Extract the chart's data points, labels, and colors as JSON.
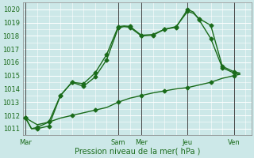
{
  "xlabel": "Pression niveau de la mer( hPa )",
  "background_color": "#cce8e8",
  "grid_color": "#ffffff",
  "line_color": "#1a6b1a",
  "ylim": [
    1010.5,
    1020.5
  ],
  "yticks": [
    1011,
    1012,
    1013,
    1014,
    1015,
    1016,
    1017,
    1018,
    1019,
    1020
  ],
  "day_labels": [
    "Mar",
    "Sam",
    "Mer",
    "Jeu",
    "Ven"
  ],
  "day_tick_positions": [
    0,
    8,
    10,
    14,
    18
  ],
  "vline_positions": [
    0,
    8,
    10,
    14,
    18
  ],
  "xlim": [
    -0.2,
    19.5
  ],
  "line1_x": [
    0,
    0.5,
    1,
    2,
    3,
    4,
    5,
    6,
    7,
    8,
    8.5,
    9,
    10,
    11,
    12,
    13,
    14,
    14.5,
    15,
    16,
    17,
    18,
    18.5
  ],
  "line1_y": [
    1011.8,
    1011.0,
    1011.0,
    1011.2,
    1013.5,
    1014.5,
    1014.2,
    1014.9,
    1016.2,
    1018.6,
    1018.7,
    1018.65,
    1018.0,
    1018.05,
    1018.5,
    1018.65,
    1020.0,
    1019.8,
    1019.2,
    1017.8,
    1015.6,
    1015.2,
    1015.1
  ],
  "line2_x": [
    0,
    0.5,
    1,
    2,
    3,
    4,
    5,
    6,
    7,
    8,
    8.5,
    9,
    10,
    11,
    12,
    13,
    14,
    14.5,
    15,
    16,
    17,
    18,
    18.5
  ],
  "line2_y": [
    1011.8,
    1011.0,
    1011.1,
    1011.5,
    1013.5,
    1014.5,
    1014.4,
    1015.2,
    1016.6,
    1018.7,
    1018.75,
    1018.72,
    1018.05,
    1018.1,
    1018.5,
    1018.7,
    1019.85,
    1019.7,
    1019.3,
    1018.8,
    1015.7,
    1015.3,
    1015.2
  ],
  "line3_x": [
    0,
    1,
    2,
    3,
    4,
    5,
    6,
    7,
    8,
    9,
    10,
    11,
    12,
    13,
    14,
    15,
    16,
    17,
    18,
    18.5
  ],
  "line3_y": [
    1011.8,
    1011.3,
    1011.5,
    1011.8,
    1012.0,
    1012.2,
    1012.4,
    1012.6,
    1013.0,
    1013.3,
    1013.5,
    1013.7,
    1013.85,
    1014.0,
    1014.1,
    1014.3,
    1014.5,
    1014.8,
    1015.0,
    1015.1
  ],
  "line1_markers_x": [
    0,
    1,
    2,
    3,
    4,
    5,
    6,
    7,
    8,
    9,
    10,
    11,
    12,
    13,
    14,
    15,
    16,
    17,
    18
  ],
  "line1_markers_y": [
    1011.8,
    1011.0,
    1011.2,
    1013.5,
    1014.5,
    1014.2,
    1014.9,
    1016.2,
    1018.6,
    1018.65,
    1018.0,
    1018.05,
    1018.5,
    1018.65,
    1020.0,
    1019.2,
    1017.8,
    1015.6,
    1015.2
  ],
  "line2_markers_x": [
    0,
    1,
    2,
    3,
    4,
    5,
    6,
    7,
    8,
    9,
    10,
    11,
    12,
    13,
    14,
    15,
    16,
    17,
    18
  ],
  "line2_markers_y": [
    1011.8,
    1011.1,
    1011.5,
    1013.5,
    1014.5,
    1014.4,
    1015.2,
    1016.6,
    1018.7,
    1018.72,
    1018.05,
    1018.1,
    1018.5,
    1018.7,
    1019.85,
    1019.3,
    1018.8,
    1015.7,
    1015.3
  ],
  "line3_markers_x": [
    0,
    2,
    4,
    6,
    8,
    10,
    12,
    14,
    16,
    18
  ],
  "line3_markers_y": [
    1011.8,
    1011.5,
    1012.0,
    1012.4,
    1013.0,
    1013.5,
    1013.85,
    1014.1,
    1014.5,
    1015.0
  ],
  "markersize": 2.5,
  "linewidth": 1.0
}
